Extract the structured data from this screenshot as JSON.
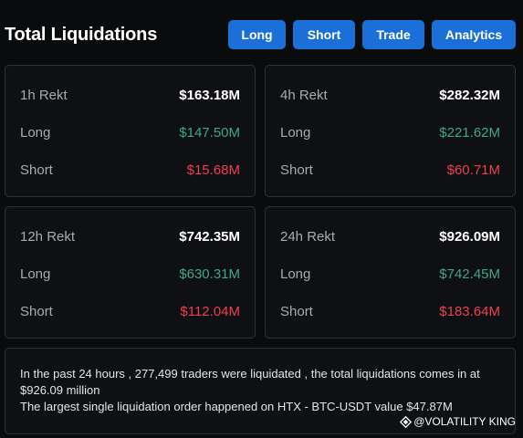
{
  "header": {
    "title": "Total Liquidations",
    "tabs": [
      "Long",
      "Short",
      "Trade",
      "Analytics"
    ]
  },
  "cards": [
    {
      "period": "1h Rekt",
      "total": "$163.18M",
      "long_label": "Long",
      "long": "$147.50M",
      "short_label": "Short",
      "short": "$15.68M"
    },
    {
      "period": "4h Rekt",
      "total": "$282.32M",
      "long_label": "Long",
      "long": "$221.62M",
      "short_label": "Short",
      "short": "$60.71M"
    },
    {
      "period": "12h Rekt",
      "total": "$742.35M",
      "long_label": "Long",
      "long": "$630.31M",
      "short_label": "Short",
      "short": "$112.04M"
    },
    {
      "period": "24h Rekt",
      "total": "$926.09M",
      "long_label": "Long",
      "long": "$742.45M",
      "short_label": "Short",
      "short": "$183.64M"
    }
  ],
  "summary": {
    "line1": "In the past 24 hours , 277,499 traders were liquidated , the total liquidations comes in at $926.09 million",
    "line2": "The largest single liquidation order happened on HTX - BTC-USDT value $47.87M"
  },
  "watermark": {
    "text": "@VOLATILITY KING",
    "icon": "diamond-logo-icon"
  },
  "colors": {
    "accent": "#1b6fd8",
    "long": "#3fa884",
    "short": "#ef3f53",
    "background": "#0a0b0d"
  }
}
